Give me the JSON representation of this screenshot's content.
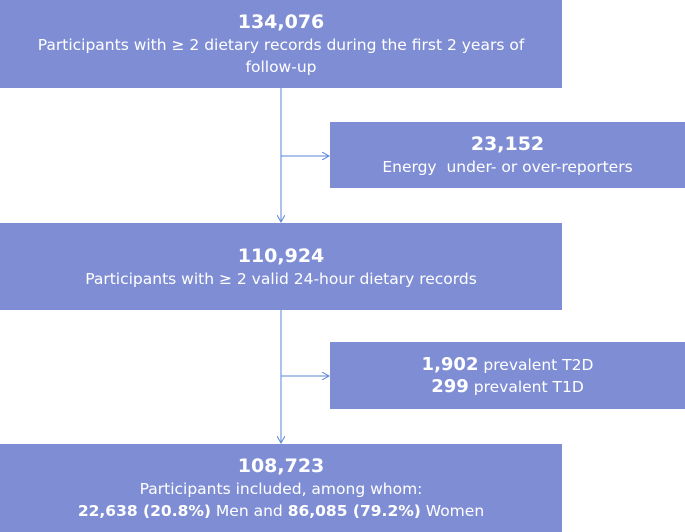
{
  "colors": {
    "box": "#7f8ed4",
    "connector": "#5b86d6",
    "text": "#ffffff"
  },
  "boxes": {
    "start": {
      "count": "134,076",
      "label": "Participants with ≥ 2 dietary records during the first 2 years of follow-up"
    },
    "exclusion1": {
      "count": "23,152",
      "label": "Energy  under- or over-reporters"
    },
    "middle": {
      "count": "110,924",
      "label": "Participants with ≥ 2 valid 24-hour dietary records"
    },
    "exclusion2": {
      "t2d_count": "1,902",
      "t2d_label": "prevalent T2D",
      "t1d_count": "299",
      "t1d_label": "prevalent T1D"
    },
    "final": {
      "count": "108,723",
      "label": "Participants included, among whom:",
      "men_count": "22,638 (20.8%)",
      "men_label": "Men and",
      "women_count": "86,085 (79.2%)",
      "women_label": "Women"
    }
  }
}
